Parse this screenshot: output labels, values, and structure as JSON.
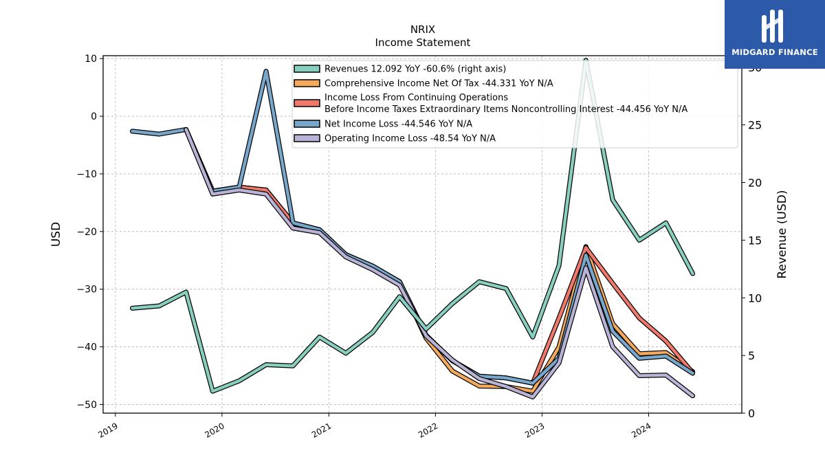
{
  "chart_data": {
    "type": "line",
    "title": "NRIX",
    "subtitle": "Income Statement",
    "ylabel": "USD",
    "ylabel_right": "Revenue (USD)",
    "ylim": [
      -51.5,
      10.5
    ],
    "ylim_right": [
      0,
      31
    ],
    "y_ticks": [
      10,
      0,
      -10,
      -20,
      -30,
      -40,
      -50
    ],
    "y_tick_labels": [
      "10",
      "0",
      "−10",
      "−20",
      "−30",
      "−40",
      "−50"
    ],
    "y_right_ticks": [
      0,
      5,
      10,
      15,
      20,
      25,
      30
    ],
    "y_right_tick_labels": [
      "0",
      "5",
      "10",
      "15",
      "20",
      "25",
      "30"
    ],
    "x_ticks": [
      "2019-01-01",
      "2020-01-01",
      "2021-01-01",
      "2022-01-01",
      "2023-01-01",
      "2024-01-01"
    ],
    "x_tick_labels": [
      "2019",
      "2020",
      "2021",
      "2022",
      "2023",
      "2024"
    ],
    "xlim": [
      "2018-11-20",
      "2024-11-15"
    ],
    "grid": true,
    "legend_position": "top-right",
    "x": [
      "2019-02-28",
      "2019-05-31",
      "2019-08-31",
      "2019-11-30",
      "2020-02-29",
      "2020-05-31",
      "2020-08-31",
      "2020-11-30",
      "2021-02-28",
      "2021-05-31",
      "2021-08-31",
      "2021-11-30",
      "2022-02-28",
      "2022-05-31",
      "2022-08-31",
      "2022-11-30",
      "2023-02-28",
      "2023-05-31",
      "2023-08-31",
      "2023-11-30",
      "2024-02-29",
      "2024-05-31"
    ],
    "series": [
      {
        "name": "Revenues",
        "legend": "Revenues  12.092 YoY -60.6% (right axis)",
        "axis": "right",
        "color": "#88cfc0",
        "values": [
          9.1,
          9.3,
          10.5,
          1.9,
          2.8,
          4.2,
          4.1,
          6.6,
          5.2,
          7.0,
          10.1,
          7.3,
          9.5,
          11.4,
          10.8,
          6.6,
          12.8,
          30.6,
          18.5,
          15.0,
          16.5,
          12.1
        ]
      },
      {
        "name": "Comprehensive Income Net Of Tax",
        "legend": "Comprehensive Income Net Of Tax  -44.331 YoY N/A",
        "axis": "left",
        "color": "#f5a95d",
        "values": [
          null,
          null,
          -2.3,
          -13.0,
          -12.3,
          -12.8,
          -18.5,
          -19.7,
          -24.0,
          -26.0,
          -28.7,
          -38.5,
          -44.2,
          -46.8,
          -46.9,
          -47.7,
          -40.0,
          -22.6,
          -36.0,
          -41.2,
          -41.0,
          -44.3
        ]
      },
      {
        "name": "Income Loss From Continuing Operations Before Income Taxes Extraordinary Items Noncontrolling Interest",
        "legend_line1": "Income Loss From Continuing Operations",
        "legend_line2": "Before Income Taxes Extraordinary Items Noncontrolling Interest  -44.456 YoY N/A",
        "axis": "left",
        "color": "#ef7a6b",
        "values": [
          null,
          null,
          -2.3,
          -13.0,
          -12.3,
          -12.8,
          -18.5,
          -19.7,
          -24.0,
          -26.0,
          -28.7,
          -38.0,
          -42.4,
          -45.1,
          -45.4,
          -46.3,
          -35.0,
          -22.8,
          -29.0,
          -35.0,
          -39.0,
          -44.5
        ]
      },
      {
        "name": "Net Income Loss",
        "legend": "Net Income Loss  -44.546 YoY N/A",
        "axis": "left",
        "color": "#78a7cc",
        "values": [
          -2.6,
          -3.1,
          -2.3,
          -13.0,
          -12.3,
          7.8,
          -18.5,
          -19.7,
          -24.0,
          -26.0,
          -28.7,
          -38.0,
          -42.4,
          -45.1,
          -45.4,
          -46.3,
          -42.0,
          -24.1,
          -37.3,
          -42.0,
          -41.6,
          -44.6
        ]
      },
      {
        "name": "Operating Income Loss",
        "legend": "Operating Income Loss  -48.54 YoY N/A",
        "axis": "left",
        "color": "#b9b4d6",
        "values": [
          null,
          null,
          -2.3,
          -13.5,
          -12.8,
          -13.5,
          -19.4,
          -20.2,
          -24.4,
          -26.6,
          -29.3,
          -38.1,
          -42.3,
          -45.5,
          -46.9,
          -48.7,
          -42.8,
          -26.3,
          -40.0,
          -45.0,
          -44.9,
          -48.5
        ]
      }
    ]
  },
  "branding": {
    "logo_text": "MIDGARD FINANCE"
  }
}
